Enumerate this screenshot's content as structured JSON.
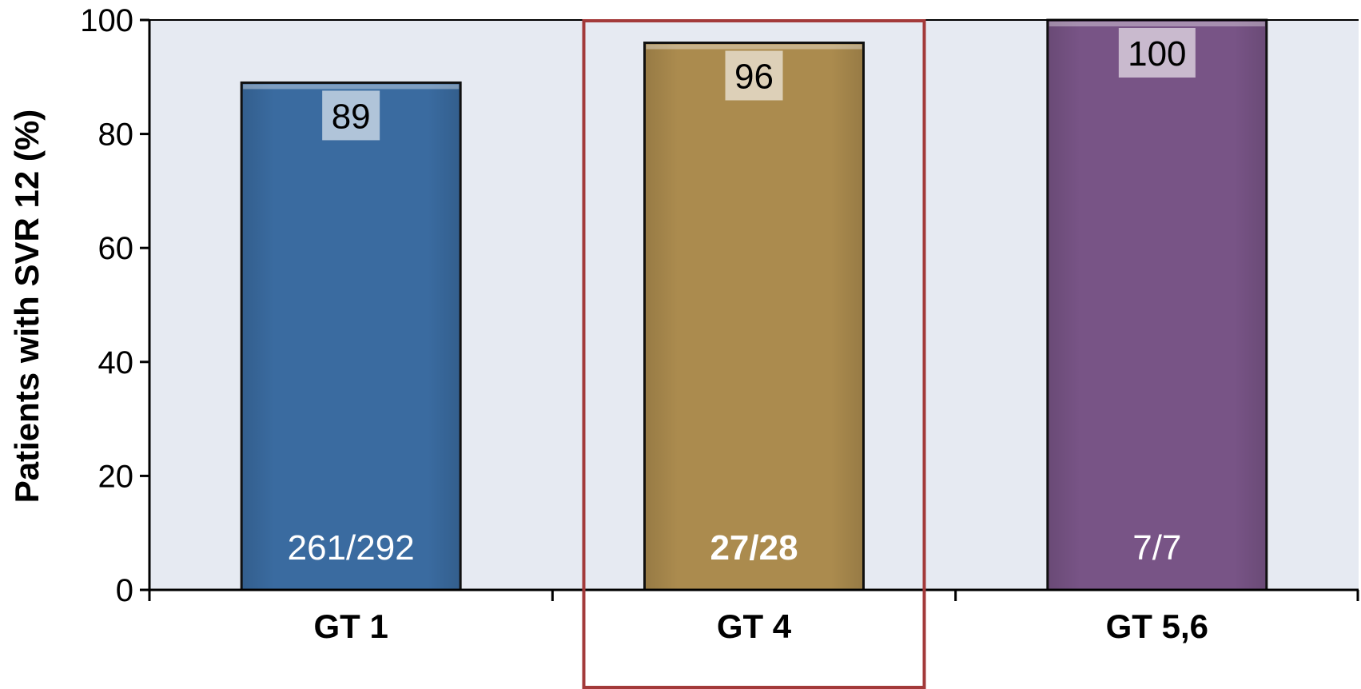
{
  "chart_data": {
    "type": "bar",
    "title": "",
    "xlabel": "",
    "ylabel": "Patients with SVR 12 (%)",
    "ylim": [
      0,
      100
    ],
    "yticks": [
      0,
      20,
      40,
      60,
      80,
      100
    ],
    "grid": false,
    "categories": [
      "GT 1",
      "GT 4",
      "GT 5,6"
    ],
    "values": [
      89,
      96,
      100
    ],
    "value_labels": [
      "89",
      "96",
      "100"
    ],
    "count_labels": [
      "261/292",
      "27/28",
      "7/7"
    ],
    "count_label_bold": [
      false,
      true,
      false
    ],
    "colors": [
      "#3A6BA0",
      "#AB8B4E",
      "#785486"
    ],
    "plot_background": "#E6EAF2",
    "highlight": {
      "category": "GT 4",
      "color": "#A33A3A"
    }
  }
}
